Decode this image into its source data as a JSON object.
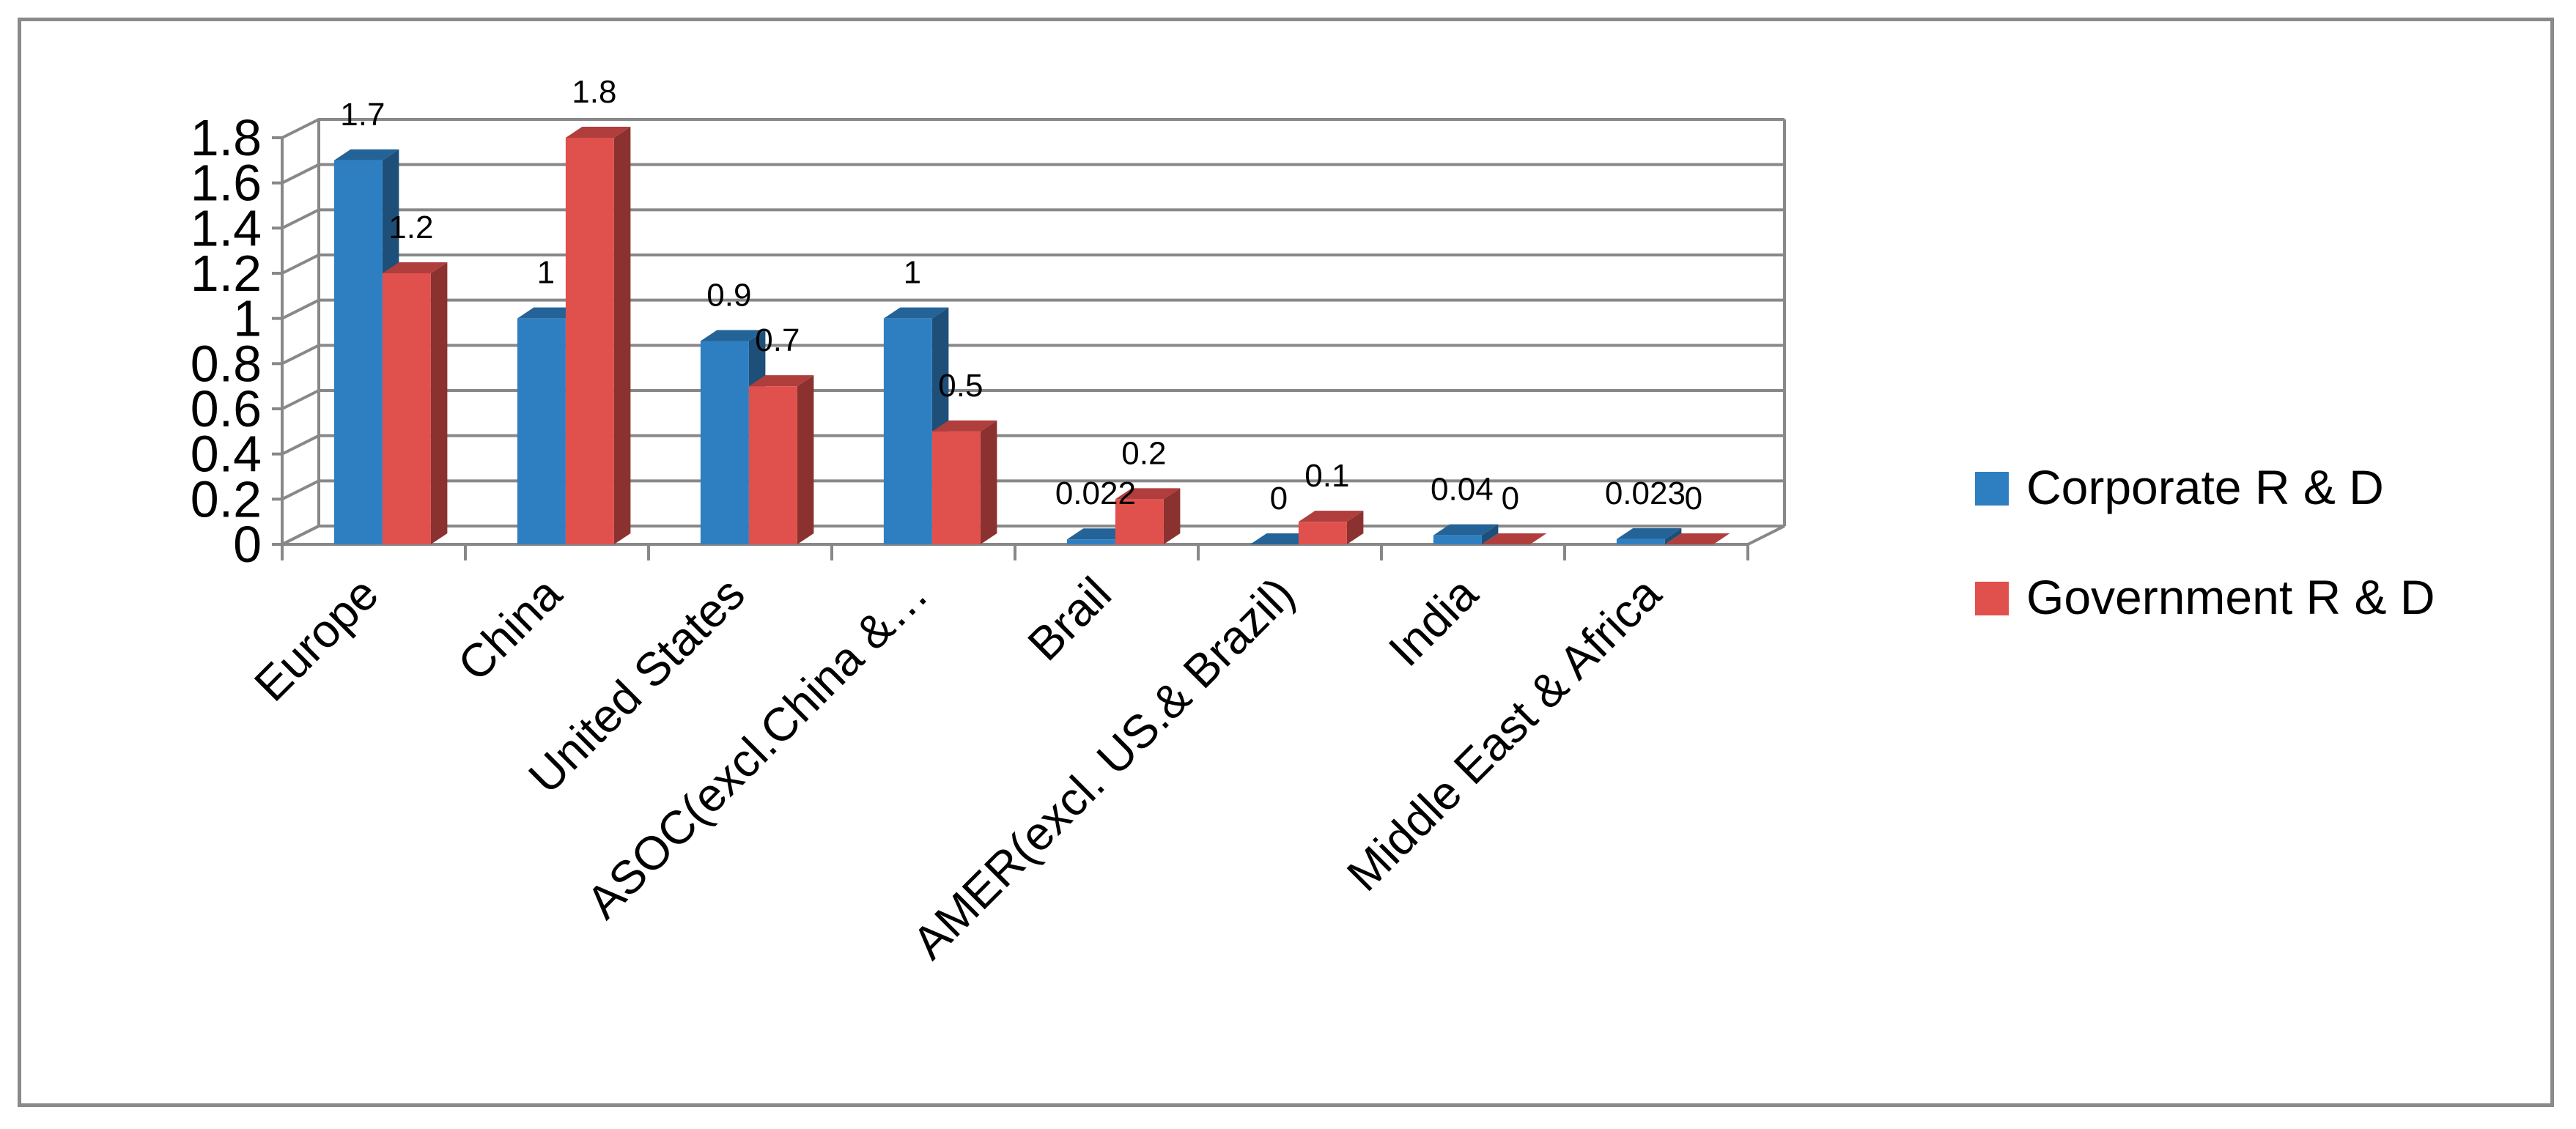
{
  "chart_data": {
    "type": "bar",
    "title": "",
    "xlabel": "",
    "ylabel": "",
    "ylim": [
      0,
      1.8
    ],
    "yticks": [
      "0",
      "0.2",
      "0.4",
      "0.6",
      "0.8",
      "1",
      "1.2",
      "1.4",
      "1.6",
      "1.8"
    ],
    "grid": true,
    "three_d": true,
    "legend_position": "right",
    "categories": [
      "Europe",
      "China",
      "United States",
      "ASOC(excl.China &…",
      "Brail",
      "AMER(excl. US.& Brazil)",
      "India",
      "Middle East & Africa"
    ],
    "series": [
      {
        "name": "Corporate R & D",
        "values": [
          1.7,
          1,
          0.9,
          1,
          0.022,
          0,
          0.04,
          0.023
        ],
        "labels": [
          "1.7",
          "1",
          "0.9",
          "1",
          "0.022",
          "0",
          "0.04",
          "0.023"
        ],
        "color": "#2e7fc2"
      },
      {
        "name": "Government R & D",
        "values": [
          1.2,
          1.8,
          0.7,
          0.5,
          0.2,
          0.1,
          0,
          0
        ],
        "labels": [
          "1.2",
          "1.8",
          "0.7",
          "0.5",
          "0.2",
          "0.1",
          "0",
          "0"
        ],
        "color": "#e0504d"
      }
    ]
  }
}
